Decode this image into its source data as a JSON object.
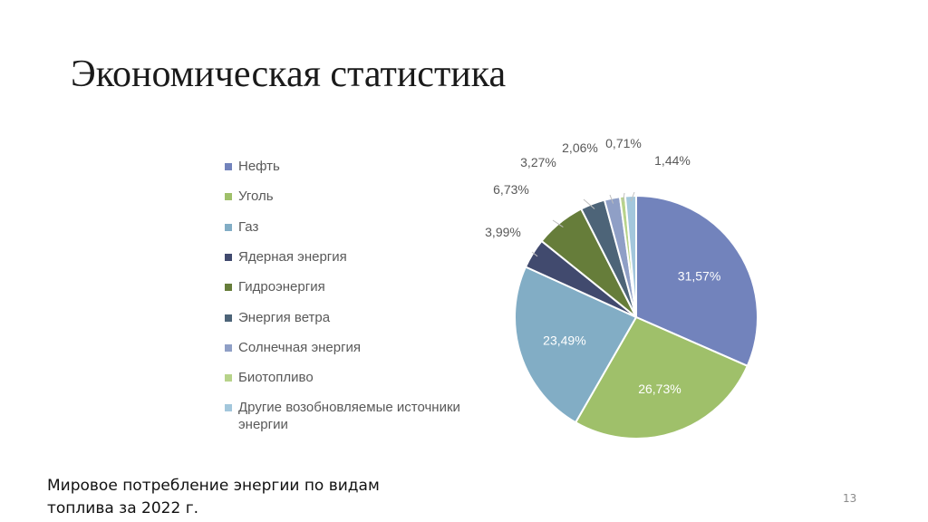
{
  "slide": {
    "title": "Экономическая статистика",
    "caption": "Мировое потребление энергии по видам топлива за 2022 г.",
    "page_number": "13"
  },
  "chart_data": {
    "type": "pie",
    "title": "",
    "categories": [
      "Нефть",
      "Уголь",
      "Газ",
      "Ядерная энергия",
      "Гидроэнергия",
      "Энергия ветра",
      "Солнечная энергия",
      "Биотопливо",
      "Другие возобновляемые источники энергии"
    ],
    "values": [
      31.57,
      26.73,
      23.49,
      3.99,
      6.73,
      3.27,
      2.06,
      0.71,
      1.44
    ],
    "labels": [
      "31,57%",
      "26,73%",
      "23,49%",
      "3,99%",
      "6,73%",
      "3,27%",
      "2,06%",
      "0,71%",
      "1,44%"
    ],
    "colors": [
      "#7283bc",
      "#9fc06a",
      "#82adc5",
      "#414a6e",
      "#667d3a",
      "#4d6478",
      "#8f9fc6",
      "#b7d38a",
      "#a3c7dc"
    ],
    "legend_position": "left"
  }
}
